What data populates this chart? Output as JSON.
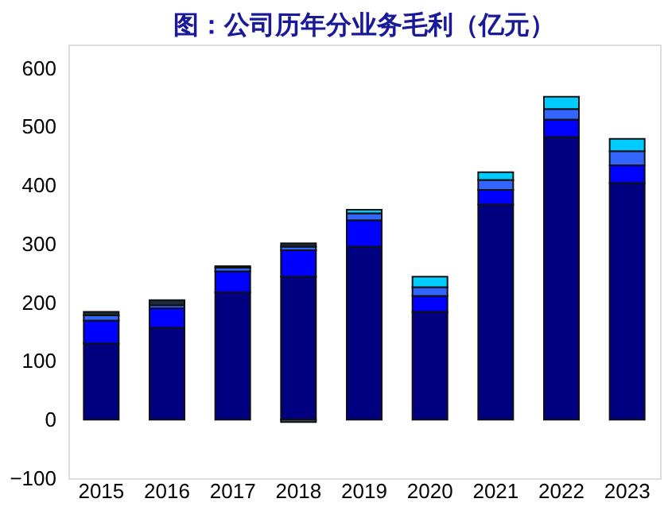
{
  "chart_data": {
    "type": "bar",
    "stacked": true,
    "title": "图：公司历年分业务毛利（亿元）",
    "categories": [
      "2015",
      "2016",
      "2017",
      "2018",
      "2019",
      "2020",
      "2021",
      "2022",
      "2023"
    ],
    "series": [
      {
        "color": "#000080",
        "values": [
          130,
          157,
          217,
          244,
          295,
          184,
          367,
          482,
          404
        ]
      },
      {
        "color": "#0000ff",
        "values": [
          39,
          33,
          36,
          45,
          45,
          27,
          25,
          30,
          30
        ]
      },
      {
        "color": "#3366ff",
        "values": [
          9,
          5,
          6,
          6,
          12,
          15,
          17,
          18,
          24
        ]
      },
      {
        "color": "#00ccff",
        "values": [
          null,
          null,
          null,
          null,
          6,
          18,
          13,
          21,
          21
        ]
      },
      {
        "color": "#1c2b3a",
        "values": [
          6,
          9,
          3,
          6,
          null,
          null,
          null,
          null,
          null
        ]
      },
      {
        "color": "#4a5a66",
        "values": [
          null,
          null,
          null,
          -4,
          null,
          null,
          null,
          null,
          null
        ]
      }
    ],
    "ylim": [
      -100,
      640
    ],
    "yticks": [
      -100,
      0,
      100,
      200,
      300,
      400,
      500,
      600
    ],
    "grid": false,
    "legend": false
  }
}
